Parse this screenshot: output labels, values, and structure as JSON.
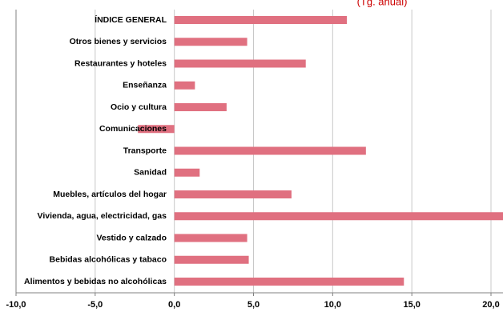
{
  "title_fragment": "(Tg. anual)",
  "colors": {
    "bar": "#e07080",
    "grid": "#c8c8c8",
    "axis": "#808080",
    "title": "#cc0000"
  },
  "chart_data": {
    "type": "bar",
    "orientation": "horizontal",
    "categories": [
      "ÍNDICE GENERAL",
      "Otros bienes y servicios",
      "Restaurantes y hoteles",
      "Enseñanza",
      "Ocio y cultura",
      "Comunicaciones",
      "Transporte",
      "Sanidad",
      "Muebles, artículos del hogar",
      "Vivienda, agua, electricidad, gas",
      "Vestido y calzado",
      "Bebidas alcohólicas y tabaco",
      "Alimentos y bebidas no alcohólicas"
    ],
    "values": [
      10.9,
      4.6,
      8.3,
      1.3,
      3.3,
      -2.3,
      12.1,
      1.6,
      7.4,
      21.2,
      4.6,
      4.7,
      14.5
    ],
    "xlim": [
      -10,
      20
    ],
    "x_ticks": [
      "-10,0",
      "-5,0",
      "0,0",
      "5,0",
      "10,0",
      "15,0",
      "20,0"
    ],
    "x_tick_values": [
      -10,
      -5,
      0,
      5,
      10,
      15,
      20
    ],
    "grid": "vertical",
    "legend": "none"
  }
}
